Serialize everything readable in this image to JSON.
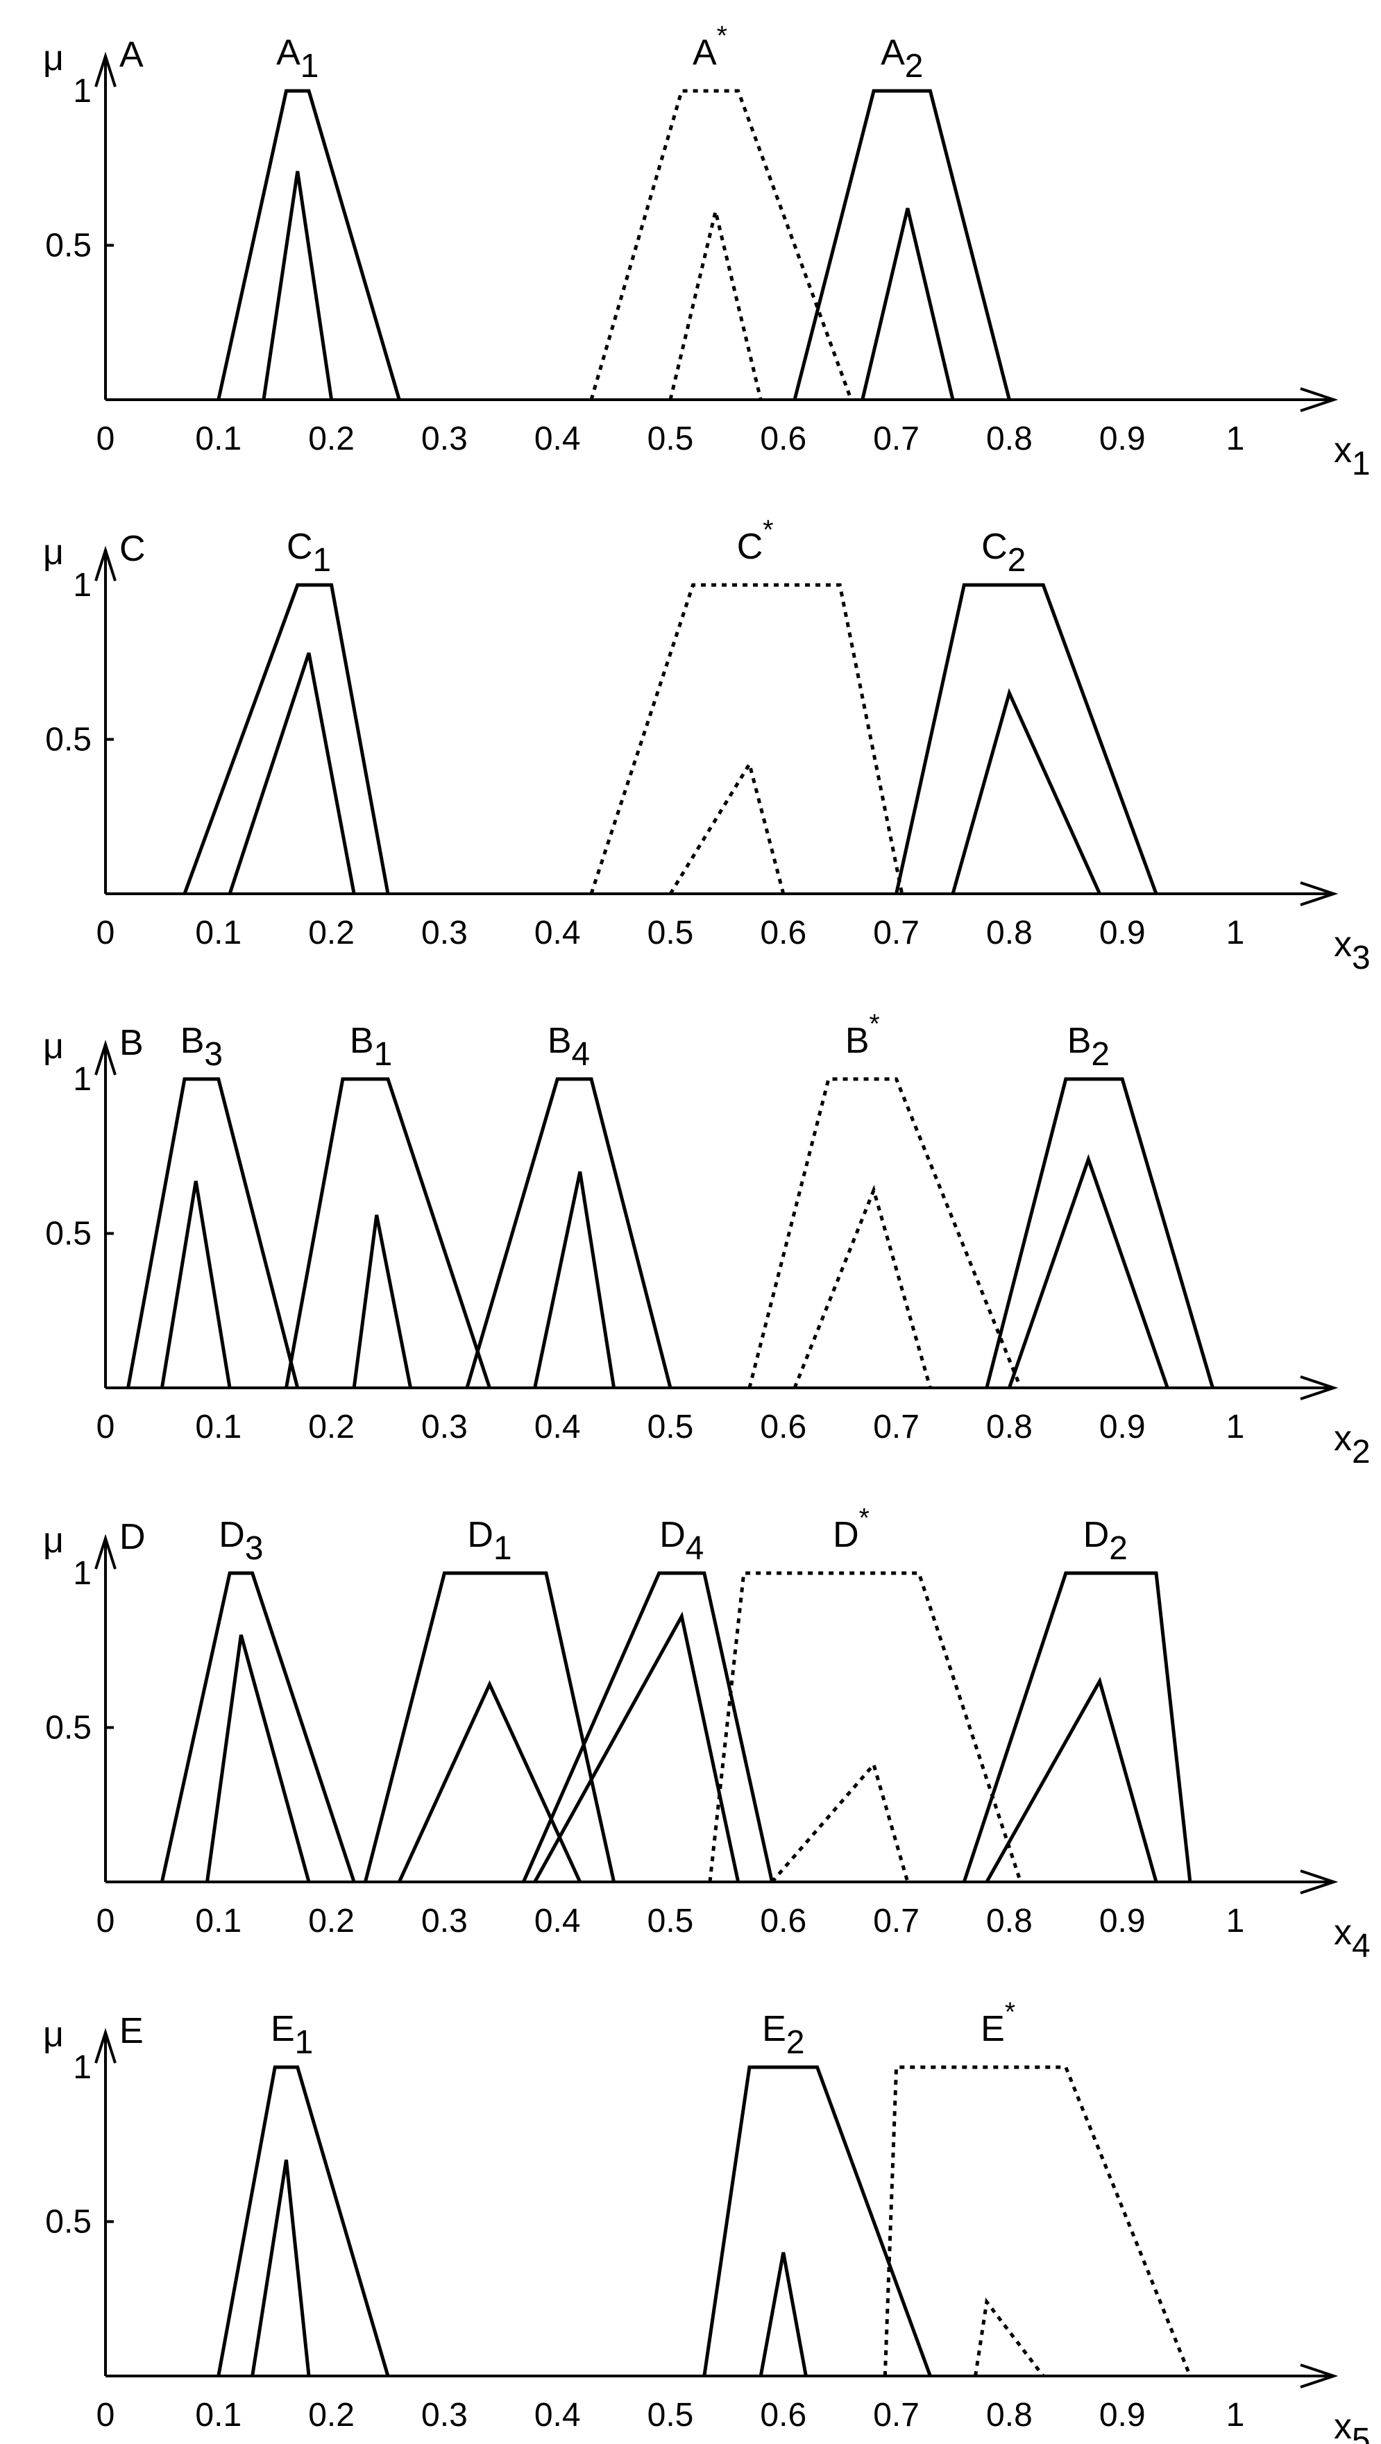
{
  "chart_data": [
    {
      "type": "line",
      "panel_label": "A",
      "ylabel": "μ",
      "xlabel": "x",
      "xlabel_sub": "1",
      "x_ticks": [
        "0",
        "0.1",
        "0.2",
        "0.3",
        "0.4",
        "0.5",
        "0.6",
        "0.7",
        "0.8",
        "0.9",
        "1"
      ],
      "y_ticks": [
        "1",
        "0.5"
      ],
      "xlim": [
        0,
        1.08
      ],
      "ylim": [
        0,
        1
      ],
      "series": [
        {
          "name": "A",
          "sub": "1",
          "sup": "",
          "style": "solid",
          "label_x": 0.17,
          "outer": [
            [
              0.1,
              0
            ],
            [
              0.16,
              1
            ],
            [
              0.18,
              1
            ],
            [
              0.26,
              0
            ]
          ],
          "inner": [
            [
              0.14,
              0
            ],
            [
              0.17,
              0.74
            ],
            [
              0.2,
              0
            ]
          ]
        },
        {
          "name": "A",
          "sub": "",
          "sup": "*",
          "style": "dotted",
          "label_x": 0.535,
          "outer": [
            [
              0.43,
              0
            ],
            [
              0.51,
              1
            ],
            [
              0.56,
              1
            ],
            [
              0.66,
              0
            ]
          ],
          "inner": [
            [
              0.5,
              0
            ],
            [
              0.54,
              0.61
            ],
            [
              0.58,
              0
            ]
          ]
        },
        {
          "name": "A",
          "sub": "2",
          "sup": "",
          "style": "solid",
          "label_x": 0.705,
          "outer": [
            [
              0.61,
              0
            ],
            [
              0.68,
              1
            ],
            [
              0.73,
              1
            ],
            [
              0.8,
              0
            ]
          ],
          "inner": [
            [
              0.67,
              0
            ],
            [
              0.71,
              0.62
            ],
            [
              0.75,
              0
            ]
          ]
        }
      ]
    },
    {
      "type": "line",
      "panel_label": "C",
      "ylabel": "μ",
      "xlabel": "x",
      "xlabel_sub": "3",
      "x_ticks": [
        "0",
        "0.1",
        "0.2",
        "0.3",
        "0.4",
        "0.5",
        "0.6",
        "0.7",
        "0.8",
        "0.9",
        "1"
      ],
      "y_ticks": [
        "1",
        "0.5"
      ],
      "xlim": [
        0,
        1.08
      ],
      "ylim": [
        0,
        1
      ],
      "series": [
        {
          "name": "C",
          "sub": "1",
          "sup": "",
          "style": "solid",
          "label_x": 0.18,
          "outer": [
            [
              0.07,
              0
            ],
            [
              0.17,
              1
            ],
            [
              0.2,
              1
            ],
            [
              0.25,
              0
            ]
          ],
          "inner": [
            [
              0.11,
              0
            ],
            [
              0.18,
              0.78
            ],
            [
              0.22,
              0
            ]
          ]
        },
        {
          "name": "C",
          "sub": "",
          "sup": "*",
          "style": "dotted",
          "label_x": 0.575,
          "outer": [
            [
              0.43,
              0
            ],
            [
              0.52,
              1
            ],
            [
              0.65,
              1
            ],
            [
              0.705,
              0
            ]
          ],
          "inner": [
            [
              0.5,
              0
            ],
            [
              0.57,
              0.42
            ],
            [
              0.6,
              0
            ]
          ]
        },
        {
          "name": "C",
          "sub": "2",
          "sup": "",
          "style": "solid",
          "label_x": 0.795,
          "outer": [
            [
              0.7,
              0
            ],
            [
              0.76,
              1
            ],
            [
              0.83,
              1
            ],
            [
              0.93,
              0
            ]
          ],
          "inner": [
            [
              0.75,
              0
            ],
            [
              0.8,
              0.65
            ],
            [
              0.88,
              0
            ]
          ]
        }
      ]
    },
    {
      "type": "line",
      "panel_label": "B",
      "ylabel": "μ",
      "xlabel": "x",
      "xlabel_sub": "2",
      "x_ticks": [
        "0",
        "0.1",
        "0.2",
        "0.3",
        "0.4",
        "0.5",
        "0.6",
        "0.7",
        "0.8",
        "0.9",
        "1"
      ],
      "y_ticks": [
        "1",
        "0.5"
      ],
      "xlim": [
        0,
        1.08
      ],
      "ylim": [
        0,
        1
      ],
      "series": [
        {
          "name": "B",
          "sub": "3",
          "sup": "",
          "style": "solid",
          "label_x": 0.085,
          "outer": [
            [
              0.02,
              0
            ],
            [
              0.07,
              1
            ],
            [
              0.1,
              1
            ],
            [
              0.17,
              0
            ]
          ],
          "inner": [
            [
              0.05,
              0
            ],
            [
              0.08,
              0.67
            ],
            [
              0.11,
              0
            ]
          ]
        },
        {
          "name": "B",
          "sub": "1",
          "sup": "",
          "style": "solid",
          "label_x": 0.235,
          "outer": [
            [
              0.16,
              0
            ],
            [
              0.21,
              1
            ],
            [
              0.25,
              1
            ],
            [
              0.34,
              0
            ]
          ],
          "inner": [
            [
              0.22,
              0
            ],
            [
              0.24,
              0.56
            ],
            [
              0.27,
              0
            ]
          ]
        },
        {
          "name": "B",
          "sub": "4",
          "sup": "",
          "style": "solid",
          "label_x": 0.41,
          "outer": [
            [
              0.32,
              0
            ],
            [
              0.4,
              1
            ],
            [
              0.43,
              1
            ],
            [
              0.5,
              0
            ]
          ],
          "inner": [
            [
              0.38,
              0
            ],
            [
              0.42,
              0.7
            ],
            [
              0.45,
              0
            ]
          ]
        },
        {
          "name": "B",
          "sub": "",
          "sup": "*",
          "style": "dotted",
          "label_x": 0.67,
          "outer": [
            [
              0.57,
              0
            ],
            [
              0.64,
              1
            ],
            [
              0.7,
              1
            ],
            [
              0.81,
              0
            ]
          ],
          "inner": [
            [
              0.61,
              0
            ],
            [
              0.68,
              0.64
            ],
            [
              0.73,
              0
            ]
          ]
        },
        {
          "name": "B",
          "sub": "2",
          "sup": "",
          "style": "solid",
          "label_x": 0.87,
          "outer": [
            [
              0.78,
              0
            ],
            [
              0.85,
              1
            ],
            [
              0.9,
              1
            ],
            [
              0.98,
              0
            ]
          ],
          "inner": [
            [
              0.8,
              0
            ],
            [
              0.87,
              0.74
            ],
            [
              0.94,
              0
            ]
          ]
        }
      ]
    },
    {
      "type": "line",
      "panel_label": "D",
      "ylabel": "μ",
      "xlabel": "x",
      "xlabel_sub": "4",
      "x_ticks": [
        "0",
        "0.1",
        "0.2",
        "0.3",
        "0.4",
        "0.5",
        "0.6",
        "0.7",
        "0.8",
        "0.9",
        "1"
      ],
      "y_ticks": [
        "1",
        "0.5"
      ],
      "xlim": [
        0,
        1.08
      ],
      "ylim": [
        0,
        1
      ],
      "series": [
        {
          "name": "D",
          "sub": "3",
          "sup": "",
          "style": "solid",
          "label_x": 0.12,
          "outer": [
            [
              0.05,
              0
            ],
            [
              0.11,
              1
            ],
            [
              0.13,
              1
            ],
            [
              0.22,
              0
            ]
          ],
          "inner": [
            [
              0.09,
              0
            ],
            [
              0.12,
              0.8
            ],
            [
              0.18,
              0
            ]
          ]
        },
        {
          "name": "D",
          "sub": "1",
          "sup": "",
          "style": "solid",
          "label_x": 0.34,
          "outer": [
            [
              0.23,
              0
            ],
            [
              0.3,
              1
            ],
            [
              0.39,
              1
            ],
            [
              0.45,
              0
            ]
          ],
          "inner": [
            [
              0.26,
              0
            ],
            [
              0.34,
              0.64
            ],
            [
              0.42,
              0
            ]
          ]
        },
        {
          "name": "D",
          "sub": "4",
          "sup": "",
          "style": "solid",
          "label_x": 0.51,
          "outer": [
            [
              0.37,
              0
            ],
            [
              0.49,
              1
            ],
            [
              0.53,
              1
            ],
            [
              0.59,
              0
            ]
          ],
          "inner": [
            [
              0.38,
              0
            ],
            [
              0.51,
              0.86
            ],
            [
              0.56,
              0
            ]
          ]
        },
        {
          "name": "D",
          "sub": "",
          "sup": "*",
          "style": "dotted",
          "label_x": 0.66,
          "outer": [
            [
              0.535,
              0
            ],
            [
              0.565,
              1
            ],
            [
              0.72,
              1
            ],
            [
              0.81,
              0
            ]
          ],
          "inner": [
            [
              0.59,
              0
            ],
            [
              0.68,
              0.38
            ],
            [
              0.71,
              0
            ]
          ]
        },
        {
          "name": "D",
          "sub": "2",
          "sup": "",
          "style": "solid",
          "label_x": 0.885,
          "outer": [
            [
              0.76,
              0
            ],
            [
              0.85,
              1
            ],
            [
              0.93,
              1
            ],
            [
              0.96,
              0
            ]
          ],
          "inner": [
            [
              0.78,
              0
            ],
            [
              0.88,
              0.65
            ],
            [
              0.93,
              0
            ]
          ]
        }
      ]
    },
    {
      "type": "line",
      "panel_label": "E",
      "ylabel": "μ",
      "xlabel": "x",
      "xlabel_sub": "5",
      "x_ticks": [
        "0",
        "0.1",
        "0.2",
        "0.3",
        "0.4",
        "0.5",
        "0.6",
        "0.7",
        "0.8",
        "0.9",
        "1"
      ],
      "y_ticks": [
        "1",
        "0.5"
      ],
      "xlim": [
        0,
        1.08
      ],
      "ylim": [
        0,
        1
      ],
      "series": [
        {
          "name": "E",
          "sub": "1",
          "sup": "",
          "style": "solid",
          "label_x": 0.165,
          "outer": [
            [
              0.1,
              0
            ],
            [
              0.15,
              1
            ],
            [
              0.17,
              1
            ],
            [
              0.25,
              0
            ]
          ],
          "inner": [
            [
              0.13,
              0
            ],
            [
              0.16,
              0.7
            ],
            [
              0.18,
              0
            ]
          ]
        },
        {
          "name": "E",
          "sub": "2",
          "sup": "",
          "style": "solid",
          "label_x": 0.6,
          "outer": [
            [
              0.53,
              0
            ],
            [
              0.57,
              1
            ],
            [
              0.63,
              1
            ],
            [
              0.73,
              0
            ]
          ],
          "inner": [
            [
              0.58,
              0
            ],
            [
              0.6,
              0.4
            ],
            [
              0.62,
              0
            ]
          ]
        },
        {
          "name": "E",
          "sub": "",
          "sup": "*",
          "style": "dotted",
          "label_x": 0.79,
          "outer": [
            [
              0.69,
              0
            ],
            [
              0.7,
              1
            ],
            [
              0.85,
              1
            ],
            [
              0.96,
              0
            ]
          ],
          "inner": [
            [
              0.77,
              0
            ],
            [
              0.78,
              0.24
            ],
            [
              0.83,
              0
            ]
          ]
        }
      ]
    }
  ]
}
